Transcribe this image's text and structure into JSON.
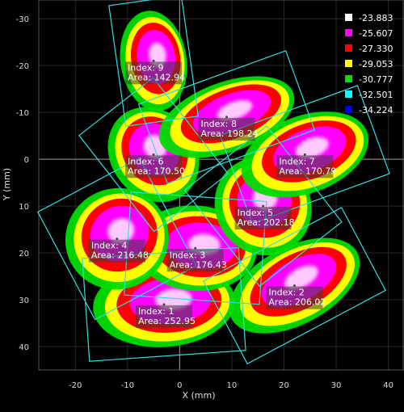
{
  "chart_data": {
    "type": "scatter",
    "xlabel": "X (mm)",
    "ylabel": "Y (mm)",
    "xlim": [
      -27,
      43
    ],
    "ylim": [
      -34,
      45
    ],
    "y_inverted": true,
    "x_ticks": [
      "-20",
      "-10",
      "0",
      "10",
      "20",
      "30",
      "40"
    ],
    "y_ticks": [
      "-30",
      "-20",
      "-10",
      "0",
      "10",
      "20",
      "30",
      "40"
    ],
    "grid": true,
    "crosshair_at_origin": true,
    "legend_position": "top-right",
    "color_scale": [
      {
        "label": "-23.883",
        "color": "#ffffff"
      },
      {
        "label": "-25.607",
        "color": "#ff00ff"
      },
      {
        "label": "-27.330",
        "color": "#ff0000"
      },
      {
        "label": "-29.053",
        "color": "#ffff00"
      },
      {
        "label": "-30.777",
        "color": "#00dd00"
      },
      {
        "label": "-32.501",
        "color": "#00ffff"
      },
      {
        "label": "-34.224",
        "color": "#0000ff"
      }
    ],
    "objects": [
      {
        "index": 1,
        "area": 252.95,
        "index_text": "Index: 1",
        "area_text": "Area: 252.95",
        "cx": -3,
        "cy": 31,
        "w": 30,
        "h": 22,
        "angle": -4
      },
      {
        "index": 2,
        "area": 206.02,
        "index_text": "Index: 2",
        "area_text": "Area: 206.02",
        "cx": 22,
        "cy": 27,
        "w": 30,
        "h": 20,
        "angle": -28
      },
      {
        "index": 3,
        "area": 176.43,
        "index_text": "Index: 3",
        "area_text": "Area: 176.43",
        "cx": 3,
        "cy": 19,
        "w": 26,
        "h": 22,
        "angle": 4
      },
      {
        "index": 4,
        "area": 216.48,
        "index_text": "Index: 4",
        "area_text": "Area: 216.48",
        "cx": -12,
        "cy": 17,
        "w": 22,
        "h": 26,
        "angle": -28
      },
      {
        "index": 5,
        "area": 202.18,
        "index_text": "Index: 5",
        "area_text": "Area: 202.18",
        "cx": 16,
        "cy": 10,
        "w": 20,
        "h": 26,
        "angle": -38
      },
      {
        "index": 6,
        "area": 170.5,
        "index_text": "Index: 6",
        "area_text": "Area: 170.50",
        "cx": -5,
        "cy": -1,
        "w": 18,
        "h": 26,
        "angle": -38
      },
      {
        "index": 7,
        "area": 170.79,
        "index_text": "Index: 7",
        "area_text": "Area: 170.79",
        "cx": 24,
        "cy": -1,
        "w": 28,
        "h": 20,
        "angle": -20
      },
      {
        "index": 8,
        "area": 198.24,
        "index_text": "Index: 8",
        "area_text": "Area: 198.24",
        "cx": 9,
        "cy": -9,
        "w": 30,
        "h": 18,
        "angle": -20
      },
      {
        "index": 9,
        "area": 142.94,
        "index_text": "Index: 9",
        "area_text": "Area: 142.94",
        "cx": -5,
        "cy": -21,
        "w": 14,
        "h": 26,
        "angle": -8
      }
    ]
  }
}
